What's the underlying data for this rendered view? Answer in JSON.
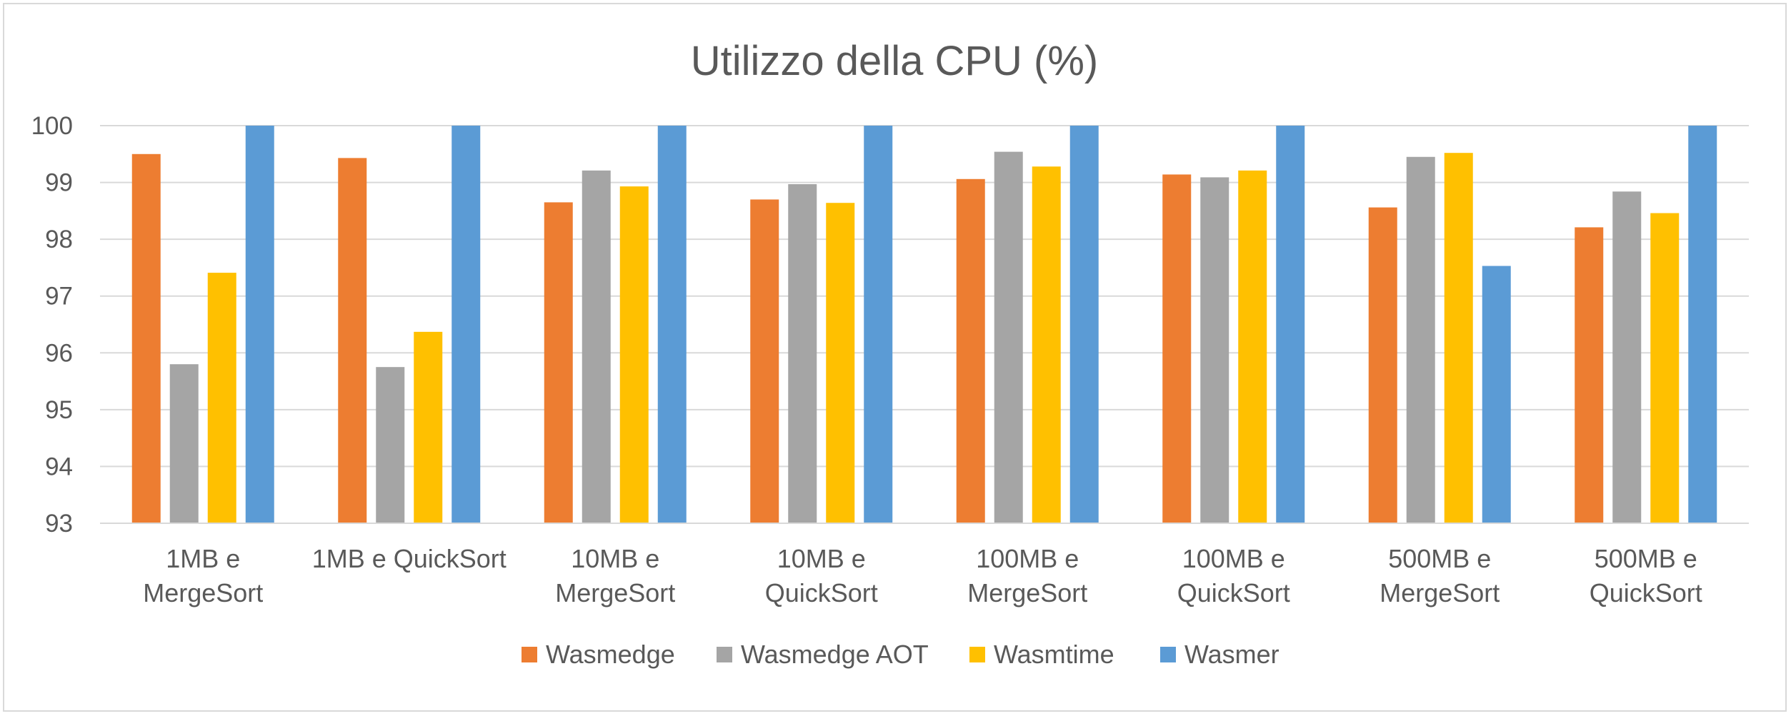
{
  "chart_data": {
    "type": "bar",
    "title": "Utilizzo della CPU (%)",
    "xlabel": "",
    "ylabel": "",
    "ylim": [
      93,
      100
    ],
    "yticks": [
      93,
      94,
      95,
      96,
      97,
      98,
      99,
      100
    ],
    "grid": true,
    "legend_position": "bottom",
    "categories": [
      [
        "1MB e",
        "MergeSort"
      ],
      [
        "1MB e QuickSort"
      ],
      [
        "10MB e",
        "MergeSort"
      ],
      [
        "10MB e",
        "QuickSort"
      ],
      [
        "100MB e",
        "MergeSort"
      ],
      [
        "100MB e",
        "QuickSort"
      ],
      [
        "500MB e",
        "MergeSort"
      ],
      [
        "500MB e",
        "QuickSort"
      ]
    ],
    "series": [
      {
        "name": "Wasmedge",
        "color": "#ed7d31",
        "values": [
          99.5,
          99.43,
          98.65,
          98.7,
          99.06,
          99.14,
          98.56,
          98.21
        ]
      },
      {
        "name": "Wasmedge AOT",
        "color": "#a5a5a5",
        "values": [
          95.8,
          95.75,
          99.21,
          98.97,
          99.54,
          99.09,
          99.45,
          98.84
        ]
      },
      {
        "name": "Wasmtime",
        "color": "#ffc000",
        "values": [
          97.41,
          96.37,
          98.93,
          98.64,
          99.28,
          99.21,
          99.52,
          98.46
        ]
      },
      {
        "name": "Wasmer",
        "color": "#5b9bd5",
        "values": [
          100,
          100,
          100,
          100,
          100,
          100,
          97.53,
          100
        ]
      }
    ],
    "gridline_color": "#d9d9d9"
  }
}
